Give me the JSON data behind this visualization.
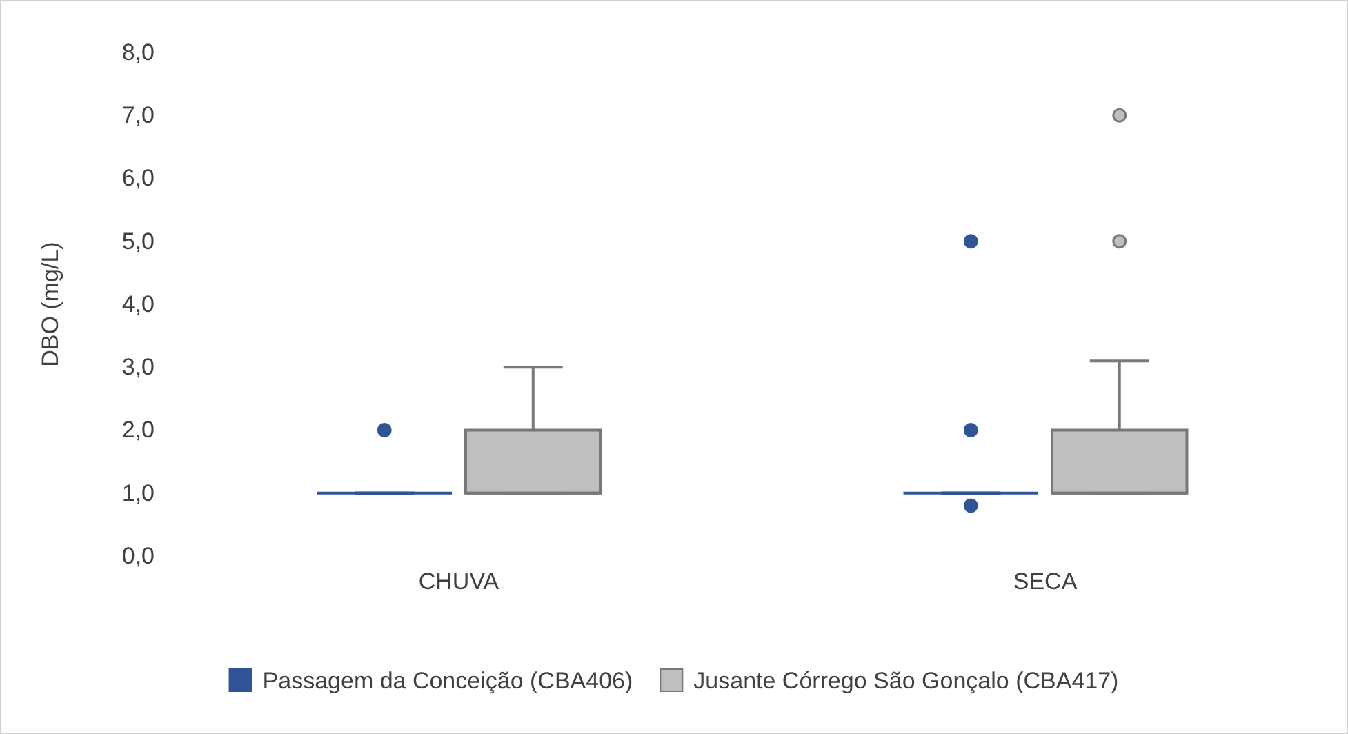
{
  "chart_data": {
    "type": "box",
    "ylabel": "DBO (mg/L)",
    "categories": [
      "CHUVA",
      "SECA"
    ],
    "ylim": [
      0,
      8
    ],
    "yticks": [
      {
        "value": 0,
        "label": "0,0"
      },
      {
        "value": 1,
        "label": "1,0"
      },
      {
        "value": 2,
        "label": "2,0"
      },
      {
        "value": 3,
        "label": "3,0"
      },
      {
        "value": 4,
        "label": "4,0"
      },
      {
        "value": 5,
        "label": "5,0"
      },
      {
        "value": 6,
        "label": "6,0"
      },
      {
        "value": 7,
        "label": "7,0"
      },
      {
        "value": 8,
        "label": "8,0"
      }
    ],
    "legend": "bottom",
    "grid": false,
    "series": [
      {
        "name": "Passagem da Conceição (CBA406)",
        "color": "#2f5597",
        "boxes": [
          {
            "low": 1,
            "q1": 1,
            "median": 1,
            "q3": 1,
            "high": 1,
            "outliers": [
              2
            ]
          },
          {
            "low": 1,
            "q1": 1,
            "median": 1,
            "q3": 1,
            "high": 1,
            "outliers": [
              5,
              2,
              0.8
            ]
          }
        ]
      },
      {
        "name": "Jusante Córrego São Gonçalo (CBA417)",
        "color": "#bfbfbf",
        "boxes": [
          {
            "low": 1,
            "q1": 1,
            "median": 1,
            "q3": 2,
            "high": 3
          },
          {
            "low": 1,
            "q1": 1,
            "median": 1,
            "q3": 2,
            "high": 3.1,
            "outliers": [
              7,
              5
            ]
          }
        ]
      }
    ]
  }
}
